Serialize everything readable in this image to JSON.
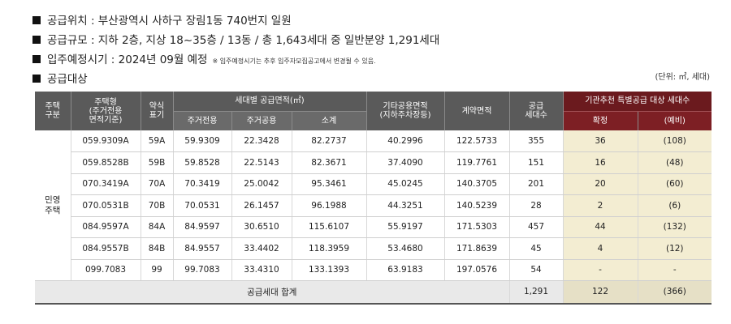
{
  "info": {
    "location_label": "공급위치 : 부산광역시 사하구 장림1동 740번지 일원",
    "scale_label": "공급규모 : 지하 2층, 지상 18~35층 / 13동 / 총 1,643세대 중 일반분양 1,291세대",
    "movein_label": "입주예정시기 : 2024년 09월 예정",
    "movein_note": "※ 입주예정시기는 추후 입주자모집공고에서 변경될 수 있음.",
    "target_label": "공급대상",
    "unit_label": "(단위: ㎡, 세대)"
  },
  "headers": {
    "housing_type_group": "주택\n구분",
    "housing_type": "주택형\n(주거전용\n면적기준)",
    "abbr": "약식\n표기",
    "area_group": "세대별 공급면적(㎡)",
    "exclusive": "주거전용",
    "common": "주거공용",
    "subtotal": "소계",
    "other_common": "기타공용면적\n(지하주차장등)",
    "contract_area": "계약면적",
    "supply_units": "공급\n세대수",
    "special_group": "기관추천 특별공급 대상 세대수",
    "confirmed": "확정",
    "reserve": "(예비)"
  },
  "group_label": "민영\n주택",
  "rows": [
    {
      "type": "059.9309A",
      "abbr": "59A",
      "exclusive": "59.9309",
      "common": "22.3428",
      "subtotal": "82.2737",
      "other": "40.2996",
      "contract": "122.5733",
      "units": "355",
      "confirmed": "36",
      "reserve": "(108)"
    },
    {
      "type": "059.8528B",
      "abbr": "59B",
      "exclusive": "59.8528",
      "common": "22.5143",
      "subtotal": "82.3671",
      "other": "37.4090",
      "contract": "119.7761",
      "units": "151",
      "confirmed": "16",
      "reserve": "(48)"
    },
    {
      "type": "070.3419A",
      "abbr": "70A",
      "exclusive": "70.3419",
      "common": "25.0042",
      "subtotal": "95.3461",
      "other": "45.0245",
      "contract": "140.3705",
      "units": "201",
      "confirmed": "20",
      "reserve": "(60)"
    },
    {
      "type": "070.0531B",
      "abbr": "70B",
      "exclusive": "70.0531",
      "common": "26.1457",
      "subtotal": "96.1988",
      "other": "44.3251",
      "contract": "140.5239",
      "units": "28",
      "confirmed": "2",
      "reserve": "(6)"
    },
    {
      "type": "084.9597A",
      "abbr": "84A",
      "exclusive": "84.9597",
      "common": "30.6510",
      "subtotal": "115.6107",
      "other": "55.9197",
      "contract": "171.5303",
      "units": "457",
      "confirmed": "44",
      "reserve": "(132)"
    },
    {
      "type": "084.9557B",
      "abbr": "84B",
      "exclusive": "84.9557",
      "common": "33.4402",
      "subtotal": "118.3959",
      "other": "53.4680",
      "contract": "171.8639",
      "units": "45",
      "confirmed": "4",
      "reserve": "(12)"
    },
    {
      "type": "099.7083",
      "abbr": "99",
      "exclusive": "99.7083",
      "common": "33.4310",
      "subtotal": "133.1393",
      "other": "63.9183",
      "contract": "197.0576",
      "units": "54",
      "confirmed": "-",
      "reserve": "-"
    }
  ],
  "total": {
    "label": "공급세대 합계",
    "units": "1,291",
    "confirmed": "122",
    "reserve": "(366)"
  },
  "colors": {
    "header_gray": "#5a5a5a",
    "header_red": "#6b1a1e",
    "highlight": "#f3edd2"
  }
}
